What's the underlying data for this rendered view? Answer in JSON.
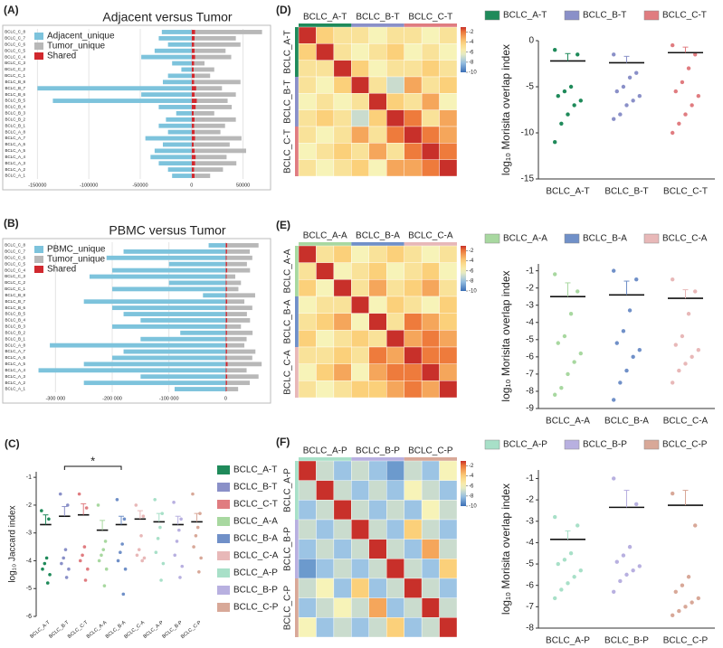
{
  "chart_data": [
    {
      "type": "hbar",
      "panel": "(A)",
      "title": "Adjacent versus Tumor",
      "categories": [
        "BCLC_A_1",
        "BCLC_A_2",
        "BCLC_A_3",
        "BCLC_A_4",
        "BCLC_A_5",
        "BCLC_A_6",
        "BCLC_A_7",
        "BCLC_A_8",
        "BCLC_B_1",
        "BCLC_B_2",
        "BCLC_B_3",
        "BCLC_B_4",
        "BCLC_B_5",
        "BCLC_B_6",
        "BCLC_B_7",
        "BCLC_B_8",
        "BCLC_C_1",
        "BCLC_C_2",
        "BCLC_C_3",
        "BCLC_C_4",
        "BCLC_C_5",
        "BCLC_C_6",
        "BCLC_C_7",
        "BCLC_C_8"
      ],
      "series": [
        {
          "name": "Adjacent_unique",
          "color": "#7dc3dc",
          "values": [
            -19000,
            -23000,
            -32000,
            -40000,
            -36000,
            -28000,
            -45000,
            -23000,
            -32000,
            -25000,
            -15000,
            -32000,
            -135000,
            -49000,
            -150000,
            -28000,
            -23000,
            -10000,
            -19000,
            -49000,
            -36000,
            -23000,
            -32000,
            -29000
          ]
        },
        {
          "name": "Tumor_unique",
          "color": "#b8b8b8",
          "values": [
            15000,
            28000,
            40000,
            30000,
            50000,
            35000,
            45000,
            25000,
            30000,
            40000,
            20000,
            35000,
            30000,
            40000,
            25000,
            45000,
            15000,
            20000,
            10000,
            35000,
            30000,
            45000,
            40000,
            65000
          ]
        },
        {
          "name": "Shared",
          "color": "#d0282e",
          "values": [
            3000,
            2500,
            3500,
            4000,
            3000,
            2000,
            3500,
            3000,
            2500,
            3000,
            2000,
            4000,
            5000,
            3000,
            4500,
            2500,
            3000,
            2000,
            2500,
            3500,
            3000,
            2500,
            3000,
            3500
          ]
        }
      ],
      "xlim": [
        -160000,
        75000
      ],
      "xticks": [
        -150000,
        -100000,
        -50000,
        0,
        50000
      ]
    },
    {
      "type": "hbar",
      "panel": "(B)",
      "title": "PBMC versus Tumor",
      "categories": [
        "BCLC_A_1",
        "BCLC_A_2",
        "BCLC_A_3",
        "BCLC_A_4",
        "BCLC_A_5",
        "BCLC_A_6",
        "BCLC_A_7",
        "BCLC_A_8",
        "BCLC_B_1",
        "BCLC_B_2",
        "BCLC_B_3",
        "BCLC_B_4",
        "BCLC_B_5",
        "BCLC_B_6",
        "BCLC_B_7",
        "BCLC_B_8",
        "BCLC_C_1",
        "BCLC_C_2",
        "BCLC_C_3",
        "BCLC_C_4",
        "BCLC_C_5",
        "BCLC_C_6",
        "BCLC_C_7",
        "BCLC_C_8"
      ],
      "series": [
        {
          "name": "PBMC_unique",
          "color": "#7dc3dc",
          "values": [
            -90000,
            -250000,
            -150000,
            -330000,
            -250000,
            -200000,
            -180000,
            -310000,
            -150000,
            -80000,
            -200000,
            -150000,
            -180000,
            -200000,
            -250000,
            -40000,
            -200000,
            -100000,
            -240000,
            -200000,
            -100000,
            -210000,
            -180000,
            -30000
          ]
        },
        {
          "name": "Tumor_unique",
          "color": "#b8b8b8",
          "values": [
            20000,
            40000,
            55000,
            35000,
            60000,
            45000,
            50000,
            30000,
            35000,
            45000,
            25000,
            40000,
            35000,
            45000,
            30000,
            50000,
            20000,
            25000,
            15000,
            40000,
            35000,
            45000,
            40000,
            55000
          ]
        },
        {
          "name": "Shared",
          "color": "#d0282e",
          "values": [
            2000,
            2500,
            3000,
            2000,
            3500,
            2000,
            2500,
            3000,
            2000,
            2500,
            2000,
            3000,
            2500,
            2000,
            3000,
            2000,
            2500,
            2000,
            2000,
            3000,
            2500,
            2000,
            2500,
            3000
          ]
        }
      ],
      "xlim": [
        -350000,
        76000
      ],
      "xticks": [
        {
          "value": -300000,
          "label": "-300 000"
        },
        {
          "value": -200000,
          "label": "-200 000"
        },
        {
          "value": -100000,
          "label": "-100 000"
        },
        0
      ]
    },
    {
      "type": "strip",
      "panel": "(C)",
      "y_label": "log₁₀ Jaccard index",
      "annotation": "*",
      "categories": [
        "BCLC_A-T",
        "BCLC_B-T",
        "BCLC_C-T",
        "BCLC_A-A",
        "BCLC_B-A",
        "BCLC_C-A",
        "BCLC_A-P",
        "BCLC_B-P",
        "BCLC_C-P"
      ],
      "colors": [
        "#1f8a5a",
        "#8a90c8",
        "#e07c80",
        "#a8d8a0",
        "#7090c8",
        "#e8b8b8",
        "#a8e0c8",
        "#b8b0e0",
        "#d8a898"
      ],
      "points": [
        [
          -2.2,
          -2.5,
          -3.9,
          -4.1,
          -4.3,
          -4.5,
          -4.8
        ],
        [
          -1.6,
          -2.0,
          -3.6,
          -3.9,
          -4.1,
          -4.3,
          -4.6
        ],
        [
          -1.6,
          -2.1,
          -3.5,
          -3.8,
          -4.0,
          -4.3,
          -4.7
        ],
        [
          -2.0,
          -3.3,
          -3.6,
          -3.8,
          -4.0,
          -4.3,
          -4.9
        ],
        [
          -1.8,
          -2.5,
          -3.4,
          -3.7,
          -4.0,
          -4.3,
          -5.2
        ],
        [
          -2.0,
          -2.4,
          -3.1,
          -3.6,
          -3.8,
          -3.9,
          -4.0
        ],
        [
          -1.8,
          -2.3,
          -2.8,
          -3.2,
          -3.7,
          -4.1,
          -4.7
        ],
        [
          -1.9,
          -2.5,
          -2.9,
          -3.3,
          -3.8,
          -4.2,
          -4.6
        ],
        [
          -1.6,
          -2.3,
          -2.8,
          -3.1,
          -3.5,
          -3.9,
          -4.4
        ]
      ],
      "means": [
        -2.7,
        -2.4,
        -2.35,
        -2.9,
        -2.7,
        -2.5,
        -2.6,
        -2.7,
        -2.6
      ],
      "errors": [
        0.35,
        0.35,
        0.4,
        0.35,
        0.3,
        0.3,
        0.3,
        0.3,
        0.3
      ],
      "ylim": [
        -6,
        -0.8
      ],
      "yticks": [
        -6,
        -5,
        -4,
        -3,
        -2,
        -1
      ]
    },
    {
      "type": "heatmap",
      "panel": "(D)",
      "categories": [
        "BCLC_A-T",
        "BCLC_B-T",
        "BCLC_C-T"
      ],
      "colors": [
        "#1f8a5a",
        "#8a90c8",
        "#e07c80"
      ],
      "matrix": [
        [
          -1,
          -4,
          -5,
          -5,
          -6,
          -5,
          -5,
          -6,
          -5
        ],
        [
          -4,
          -1,
          -5,
          -6,
          -5,
          -4,
          -6,
          -5,
          -6
        ],
        [
          -5,
          -5,
          -1,
          -4,
          -6,
          -5,
          -5,
          -4,
          -5
        ],
        [
          -5,
          -6,
          -4,
          -1,
          -5,
          -7,
          -3,
          -5,
          -4
        ],
        [
          -6,
          -5,
          -6,
          -5,
          -1,
          -4,
          -5,
          -3,
          -6
        ],
        [
          -5,
          -4,
          -5,
          -7,
          -4,
          -1,
          -2,
          -5,
          -3
        ],
        [
          -5,
          -6,
          -5,
          -3,
          -5,
          -2,
          -1,
          -2,
          -3
        ],
        [
          -6,
          -5,
          -4,
          -5,
          -3,
          -5,
          -2,
          -1,
          -2
        ],
        [
          -5,
          -6,
          -5,
          -4,
          -6,
          -3,
          -3,
          -2,
          -1
        ]
      ],
      "clim": [
        -10,
        -1
      ],
      "cticks": [
        -2,
        -4,
        -6,
        -8,
        -10
      ]
    },
    {
      "type": "strip",
      "y_label": "log₁₀ Morisita overlap index",
      "categories": [
        "BCLC_A-T",
        "BCLC_B-T",
        "BCLC_C-T"
      ],
      "colors": [
        "#1f8a5a",
        "#8a90c8",
        "#e07c80"
      ],
      "points": [
        [
          -1,
          -1.5,
          -5,
          -5.5,
          -6,
          -6.5,
          -7,
          -8,
          -9,
          -11
        ],
        [
          -1.5,
          -3.5,
          -4,
          -5,
          -5.5,
          -6,
          -6.5,
          -7,
          -8,
          -8.5
        ],
        [
          -0.5,
          -1.5,
          -3,
          -4.5,
          -5.5,
          -6,
          -7,
          -8,
          -9,
          -10
        ]
      ],
      "means": [
        -2.2,
        -2.4,
        -1.3
      ],
      "errors": [
        0.8,
        0.7,
        0.6
      ],
      "ylim": [
        -15,
        0
      ],
      "yticks": [
        0,
        -5,
        -10,
        -15
      ]
    },
    {
      "type": "heatmap",
      "panel": "(E)",
      "categories": [
        "BCLC_A-A",
        "BCLC_B-A",
        "BCLC_C-A"
      ],
      "colors": [
        "#a8d8a0",
        "#7090c8",
        "#e8b8b8"
      ],
      "matrix": [
        [
          -1,
          -5,
          -4,
          -6,
          -5,
          -4,
          -5,
          -6,
          -5
        ],
        [
          -5,
          -1,
          -6,
          -5,
          -4,
          -6,
          -5,
          -4,
          -6
        ],
        [
          -4,
          -6,
          -1,
          -5,
          -3,
          -5,
          -4,
          -3,
          -5
        ],
        [
          -6,
          -5,
          -5,
          -1,
          -6,
          -4,
          -5,
          -6,
          -4
        ],
        [
          -5,
          -4,
          -3,
          -6,
          -1,
          -5,
          -2,
          -3,
          -4
        ],
        [
          -4,
          -6,
          -5,
          -4,
          -5,
          -1,
          -3,
          -2,
          -3
        ],
        [
          -5,
          -5,
          -4,
          -5,
          -2,
          -3,
          -1,
          -2,
          -2
        ],
        [
          -6,
          -4,
          -3,
          -6,
          -3,
          -2,
          -2,
          -1,
          -3
        ],
        [
          -5,
          -6,
          -5,
          -4,
          -4,
          -3,
          -2,
          -3,
          -1
        ]
      ],
      "clim": [
        -10,
        -1
      ],
      "cticks": [
        -2,
        -4,
        -6,
        -8,
        -10
      ]
    },
    {
      "type": "strip",
      "y_label": "log₁₀ Morisita overlap index",
      "categories": [
        "BCLC_A-A",
        "BCLC_B-A",
        "BCLC_C-A"
      ],
      "colors": [
        "#a8d8a0",
        "#7090c8",
        "#e8b8b8"
      ],
      "points": [
        [
          -1.2,
          -2.2,
          -3.5,
          -4.8,
          -5.2,
          -5.8,
          -6.3,
          -7,
          -7.8,
          -8.2
        ],
        [
          -1,
          -1.5,
          -3.3,
          -4.5,
          -5.2,
          -5.6,
          -6,
          -6.8,
          -7.5,
          -8.5
        ],
        [
          -1.5,
          -2.2,
          -3.5,
          -4.8,
          -5.3,
          -5.6,
          -6,
          -6.4,
          -6.8,
          -7.5
        ]
      ],
      "means": [
        -2.5,
        -2.4,
        -2.6
      ],
      "errors": [
        0.8,
        0.8,
        0.5
      ],
      "ylim": [
        -9,
        -0.6
      ],
      "yticks": [
        -1,
        -2,
        -3,
        -4,
        -5,
        -6,
        -7,
        -8,
        -9
      ]
    },
    {
      "type": "heatmap",
      "panel": "(F)",
      "categories": [
        "BCLC_A-P",
        "BCLC_B-P",
        "BCLC_C-P"
      ],
      "colors": [
        "#a8e0c8",
        "#b8b0e0",
        "#d8a898"
      ],
      "matrix": [
        [
          -1,
          -7,
          -8,
          -7,
          -8,
          -9,
          -7,
          -8,
          -6
        ],
        [
          -7,
          -1,
          -7,
          -8,
          -7,
          -8,
          -6,
          -7,
          -8
        ],
        [
          -8,
          -7,
          -1,
          -7,
          -8,
          -7,
          -8,
          -6,
          -7
        ],
        [
          -7,
          -8,
          -7,
          -1,
          -7,
          -8,
          -4,
          -7,
          -8
        ],
        [
          -8,
          -7,
          -8,
          -7,
          -1,
          -7,
          -8,
          -3,
          -7
        ],
        [
          -9,
          -8,
          -7,
          -8,
          -7,
          -1,
          -7,
          -8,
          -4
        ],
        [
          -7,
          -6,
          -8,
          -4,
          -8,
          -7,
          -1,
          -7,
          -8
        ],
        [
          -8,
          -7,
          -6,
          -7,
          -3,
          -8,
          -7,
          -1,
          -7
        ],
        [
          -6,
          -8,
          -7,
          -8,
          -7,
          -4,
          -8,
          -7,
          -1
        ]
      ],
      "clim": [
        -10,
        -1
      ],
      "cticks": [
        -2,
        -4,
        -6,
        -8,
        -10
      ]
    },
    {
      "type": "strip",
      "y_label": "log₁₀ Morisita overlap index",
      "categories": [
        "BCLC_A-P",
        "BCLC_B-P",
        "BCLC_C-P"
      ],
      "colors": [
        "#a8e0c8",
        "#b8b0e0",
        "#d8a898"
      ],
      "points": [
        [
          -2.8,
          -3.2,
          -4.5,
          -4.8,
          -5,
          -5.3,
          -5.6,
          -5.9,
          -6.2,
          -6.6
        ],
        [
          -1,
          -2.2,
          -4.2,
          -4.6,
          -4.9,
          -5.1,
          -5.3,
          -5.5,
          -5.8,
          -6.3
        ],
        [
          -1.7,
          -3.2,
          -5.6,
          -6,
          -6.3,
          -6.6,
          -6.8,
          -7.0,
          -7.2,
          -7.4
        ]
      ],
      "means": [
        -3.85,
        -2.35,
        -2.25
      ],
      "errors": [
        0.4,
        0.8,
        0.7
      ],
      "ylim": [
        -8,
        -0.6
      ],
      "yticks": [
        -1,
        -2,
        -3,
        -4,
        -5,
        -6,
        -7,
        -8
      ]
    }
  ]
}
